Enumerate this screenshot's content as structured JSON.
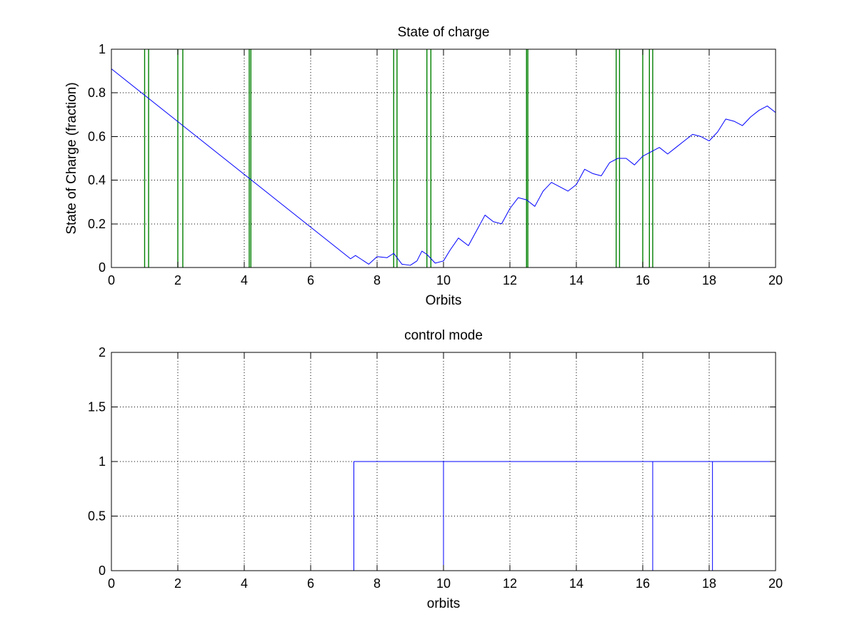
{
  "chart_data": [
    {
      "type": "line",
      "title": "State of charge",
      "xlabel": "Orbits",
      "ylabel": "State of Charge (fraction)",
      "xlim": [
        0,
        20
      ],
      "ylim": [
        0,
        1
      ],
      "xticks": [
        0,
        2,
        4,
        6,
        8,
        10,
        12,
        14,
        16,
        18,
        20
      ],
      "yticks": [
        0,
        0.2,
        0.4,
        0.6,
        0.8,
        1
      ],
      "ytick_labels": [
        "0",
        "0.2",
        "0.4",
        "0.6",
        "0.8",
        "1"
      ],
      "grid": true,
      "series": [
        {
          "color": "#0000ff",
          "x": [
            0,
            7.2,
            7.35,
            7.5,
            7.75,
            8.0,
            8.3,
            8.5,
            8.75,
            9.0,
            9.2,
            9.35,
            9.5,
            9.75,
            10.0,
            10.2,
            10.45,
            10.75,
            11.0,
            11.25,
            11.5,
            11.75,
            12.0,
            12.25,
            12.5,
            12.75,
            13.0,
            13.25,
            13.5,
            13.75,
            14.0,
            14.25,
            14.5,
            14.75,
            15.0,
            15.25,
            15.5,
            15.75,
            16.0,
            16.25,
            16.5,
            16.75,
            17.0,
            17.25,
            17.5,
            17.75,
            18.0,
            18.25,
            18.5,
            18.75,
            19.0,
            19.25,
            19.5,
            19.75,
            20.0
          ],
          "y": [
            0.91,
            0.04,
            0.055,
            0.04,
            0.015,
            0.05,
            0.045,
            0.065,
            0.015,
            0.01,
            0.03,
            0.075,
            0.06,
            0.02,
            0.03,
            0.08,
            0.135,
            0.1,
            0.17,
            0.24,
            0.21,
            0.2,
            0.27,
            0.32,
            0.31,
            0.28,
            0.35,
            0.39,
            0.37,
            0.35,
            0.38,
            0.45,
            0.43,
            0.42,
            0.48,
            0.5,
            0.5,
            0.47,
            0.51,
            0.53,
            0.55,
            0.52,
            0.55,
            0.58,
            0.61,
            0.6,
            0.58,
            0.62,
            0.68,
            0.67,
            0.65,
            0.69,
            0.72,
            0.74,
            0.71
          ]
        }
      ],
      "vlines": {
        "color": "#008000",
        "x": [
          1.0,
          1.12,
          2.0,
          2.15,
          4.15,
          4.2,
          8.5,
          8.6,
          9.5,
          9.62,
          12.5,
          12.54,
          15.2,
          15.3,
          16.0,
          16.2,
          16.3
        ]
      }
    },
    {
      "type": "line",
      "title": "control mode",
      "xlabel": "orbits",
      "ylabel": "",
      "xlim": [
        0,
        20
      ],
      "ylim": [
        0,
        2
      ],
      "xticks": [
        0,
        2,
        4,
        6,
        8,
        10,
        12,
        14,
        16,
        18,
        20
      ],
      "yticks": [
        0,
        0.5,
        1,
        1.5,
        2
      ],
      "ytick_labels": [
        "0",
        "0.5",
        "1",
        "1.5",
        "2"
      ],
      "grid": true,
      "series": [
        {
          "color": "#0000ff",
          "x": [
            7.3,
            7.3,
            10.0,
            10.0,
            10.0,
            16.3,
            16.3,
            16.3,
            18.1,
            18.1,
            18.1,
            20.0
          ],
          "y": [
            0,
            1,
            1,
            0,
            1,
            1,
            0,
            1,
            1,
            0,
            1,
            1
          ]
        }
      ]
    }
  ]
}
